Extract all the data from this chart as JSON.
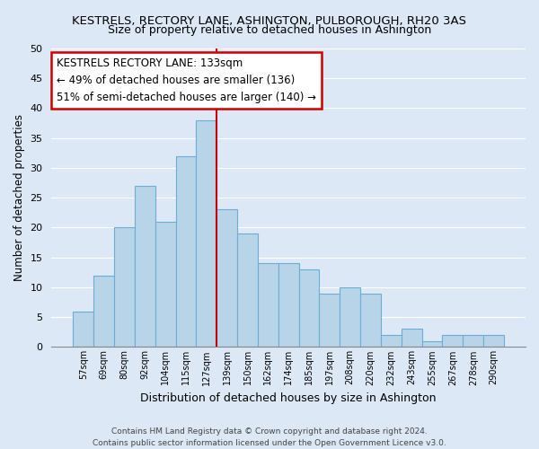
{
  "title": "KESTRELS, RECTORY LANE, ASHINGTON, PULBOROUGH, RH20 3AS",
  "subtitle": "Size of property relative to detached houses in Ashington",
  "xlabel": "Distribution of detached houses by size in Ashington",
  "ylabel": "Number of detached properties",
  "bar_labels": [
    "57sqm",
    "69sqm",
    "80sqm",
    "92sqm",
    "104sqm",
    "115sqm",
    "127sqm",
    "139sqm",
    "150sqm",
    "162sqm",
    "174sqm",
    "185sqm",
    "197sqm",
    "208sqm",
    "220sqm",
    "232sqm",
    "243sqm",
    "255sqm",
    "267sqm",
    "278sqm",
    "290sqm"
  ],
  "bar_heights": [
    6,
    12,
    20,
    27,
    21,
    32,
    38,
    23,
    19,
    14,
    14,
    13,
    9,
    10,
    9,
    2,
    3,
    1,
    2,
    2,
    2
  ],
  "bar_color": "#b8d4e8",
  "bar_edge_color": "#6aaed6",
  "vline_x": 6.5,
  "vline_color": "#cc0000",
  "annotation_title": "KESTRELS RECTORY LANE: 133sqm",
  "annotation_line1": "← 49% of detached houses are smaller (136)",
  "annotation_line2": "51% of semi-detached houses are larger (140) →",
  "annotation_box_color": "#ffffff",
  "annotation_box_edge_color": "#cc0000",
  "ylim": [
    0,
    50
  ],
  "yticks": [
    0,
    5,
    10,
    15,
    20,
    25,
    30,
    35,
    40,
    45,
    50
  ],
  "footer_line1": "Contains HM Land Registry data © Crown copyright and database right 2024.",
  "footer_line2": "Contains public sector information licensed under the Open Government Licence v3.0.",
  "bg_color": "#dce8f5",
  "plot_bg_color": "#dce8f5",
  "title_fontsize": 9.5,
  "subtitle_fontsize": 9
}
